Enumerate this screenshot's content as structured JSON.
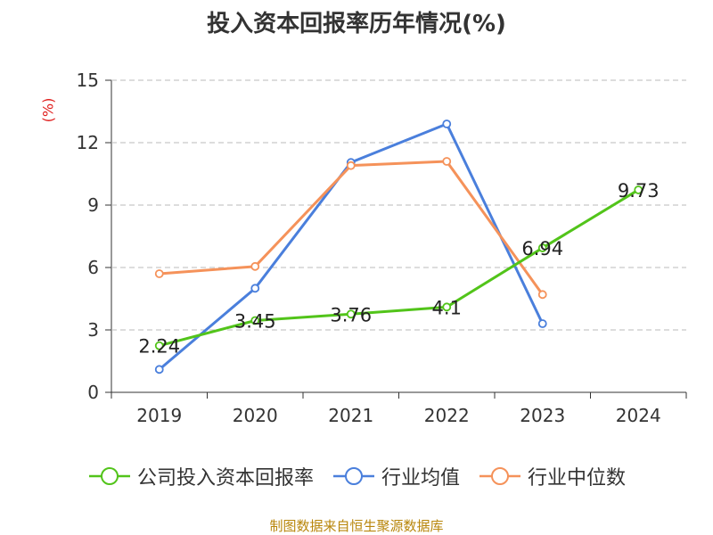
{
  "chart_data": {
    "type": "line",
    "title": "投入资本回报率历年情况(%)",
    "ylabel": "(%)",
    "categories": [
      "2019",
      "2020",
      "2021",
      "2022",
      "2023",
      "2024"
    ],
    "ylim": [
      0,
      15
    ],
    "yticks": [
      0,
      3,
      6,
      9,
      12,
      15
    ],
    "series": [
      {
        "name": "公司投入资本回报率",
        "color": "#52c41a",
        "values": [
          2.24,
          3.45,
          3.76,
          4.1,
          6.94,
          9.73
        ],
        "labels": [
          "2.24",
          "3.45",
          "3.76",
          "4.1",
          "6.94",
          "9.73"
        ]
      },
      {
        "name": "行业均值",
        "color": "#4a7fdc",
        "values": [
          1.1,
          5.0,
          11.05,
          12.9,
          3.3,
          null
        ]
      },
      {
        "name": "行业中位数",
        "color": "#f5925a",
        "values": [
          5.7,
          6.05,
          10.9,
          11.1,
          4.7,
          null
        ]
      }
    ],
    "source": "制图数据来自恒生聚源数据库"
  }
}
